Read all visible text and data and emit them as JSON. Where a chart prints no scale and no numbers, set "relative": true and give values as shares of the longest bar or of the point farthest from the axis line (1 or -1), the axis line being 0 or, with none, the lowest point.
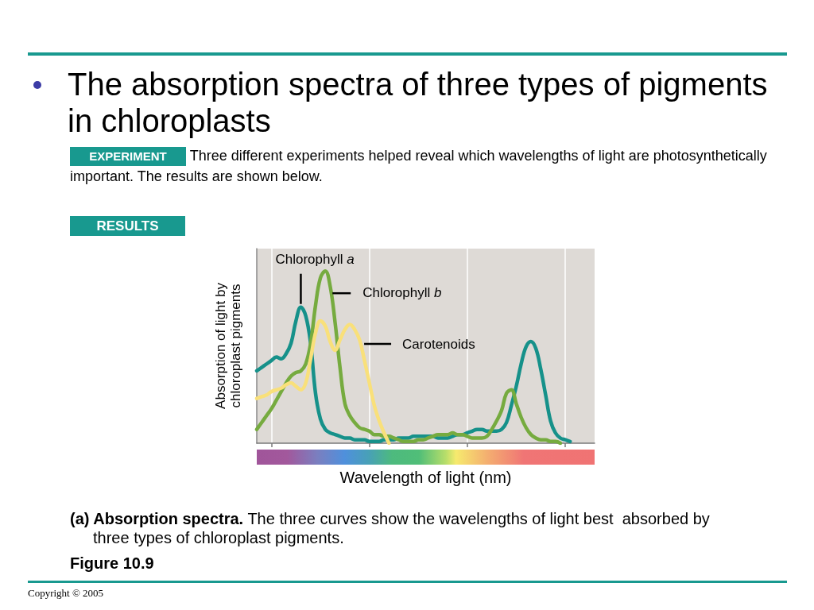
{
  "chart_data": {
    "type": "line",
    "title": "The absorption spectra of three types of pigments in chloroplasts",
    "xlabel": "Wavelength of light (nm)",
    "ylabel": "Absorption of light by chloroplast pigments",
    "annotations": [
      "EXPERIMENT Three different experiments helped reveal which wavelengths of light are photosynthetically important. The results are shown below.",
      "RESULTS",
      "(a) Absorption spectra. The three curves show the wavelengths of light best  absorbed by three types of chloroplast pigments.",
      "Figure 10.9",
      "Copyright © 2005"
    ],
    "relative": true,
    "grid": "x",
    "categories": [
      null,
      null,
      null,
      null,
      null,
      null,
      null,
      null,
      null,
      null,
      null,
      null,
      null,
      null,
      null,
      null,
      null,
      null,
      null,
      null,
      null,
      null,
      null,
      null,
      null,
      null,
      null,
      null,
      null,
      null,
      null,
      null,
      null,
      null,
      null,
      null,
      null,
      null,
      null,
      null,
      null,
      null,
      null,
      null,
      null,
      null,
      null,
      null,
      null,
      null,
      null,
      null,
      null,
      null,
      null,
      null,
      null,
      null,
      null,
      null,
      null,
      null,
      null,
      null,
      null,
      null,
      null,
      null,
      null,
      null
    ],
    "series": [
      {
        "name": "Chlorophyll a",
        "color": "#16918a",
        "values": [
          0.42,
          0.44,
          0.46,
          0.48,
          0.5,
          0.49,
          0.52,
          0.58,
          0.71,
          0.79,
          0.74,
          0.58,
          0.29,
          0.14,
          0.08,
          0.06,
          0.05,
          0.04,
          0.03,
          0.03,
          0.02,
          0.02,
          0.02,
          0.01,
          0.01,
          0.01,
          0.02,
          0.02,
          0.02,
          0.03,
          0.03,
          0.03,
          0.04,
          0.04,
          0.04,
          0.04,
          0.04,
          0.03,
          0.03,
          0.03,
          0.04,
          0.05,
          0.05,
          0.06,
          0.07,
          0.08,
          0.08,
          0.07,
          0.07,
          0.07,
          0.08,
          0.12,
          0.22,
          0.33,
          0.46,
          0.56,
          0.59,
          0.55,
          0.43,
          0.28,
          0.13,
          0.06,
          0.03,
          0.02,
          0.01,
          null,
          null,
          null,
          null,
          null
        ]
      },
      {
        "name": "Chlorophyll b",
        "color": "#76ab3f",
        "values": [
          0.08,
          0.12,
          0.16,
          0.2,
          0.25,
          0.3,
          0.35,
          0.39,
          0.41,
          0.42,
          0.46,
          0.58,
          0.8,
          0.96,
          1,
          0.91,
          0.7,
          0.44,
          0.23,
          0.16,
          0.12,
          0.09,
          0.08,
          0.07,
          0.05,
          0.05,
          0.04,
          0.04,
          0.03,
          0.02,
          0.01,
          0.01,
          0.01,
          0.02,
          0.02,
          0.03,
          0.04,
          0.05,
          0.05,
          0.05,
          0.06,
          0.05,
          0.05,
          0.04,
          0.03,
          0.03,
          0.03,
          0.04,
          0.08,
          0.13,
          0.19,
          0.29,
          0.31,
          0.23,
          0.15,
          0.09,
          0.05,
          0.03,
          0.02,
          0.02,
          0.01,
          0.01,
          0,
          null,
          null,
          null,
          null,
          null,
          null,
          null
        ]
      },
      {
        "name": "Carotenoids",
        "color": "#f9e07a",
        "values": [
          0.26,
          0.27,
          0.28,
          0.3,
          0.31,
          0.32,
          0.34,
          0.35,
          0.33,
          0.31,
          0.35,
          0.49,
          0.64,
          0.71,
          0.68,
          0.59,
          0.54,
          0.6,
          0.66,
          0.69,
          0.66,
          0.6,
          0.48,
          0.35,
          0.22,
          0.13,
          0.06,
          0,
          null,
          null,
          null,
          null,
          null,
          null,
          null,
          null,
          null,
          null,
          null,
          null,
          null,
          null,
          null,
          null,
          null,
          null,
          null,
          null,
          null,
          null,
          null,
          null,
          null,
          null,
          null,
          null,
          null,
          null,
          null,
          null,
          null,
          null,
          null,
          null,
          null,
          null,
          null,
          null,
          null,
          null
        ]
      }
    ]
  }
}
